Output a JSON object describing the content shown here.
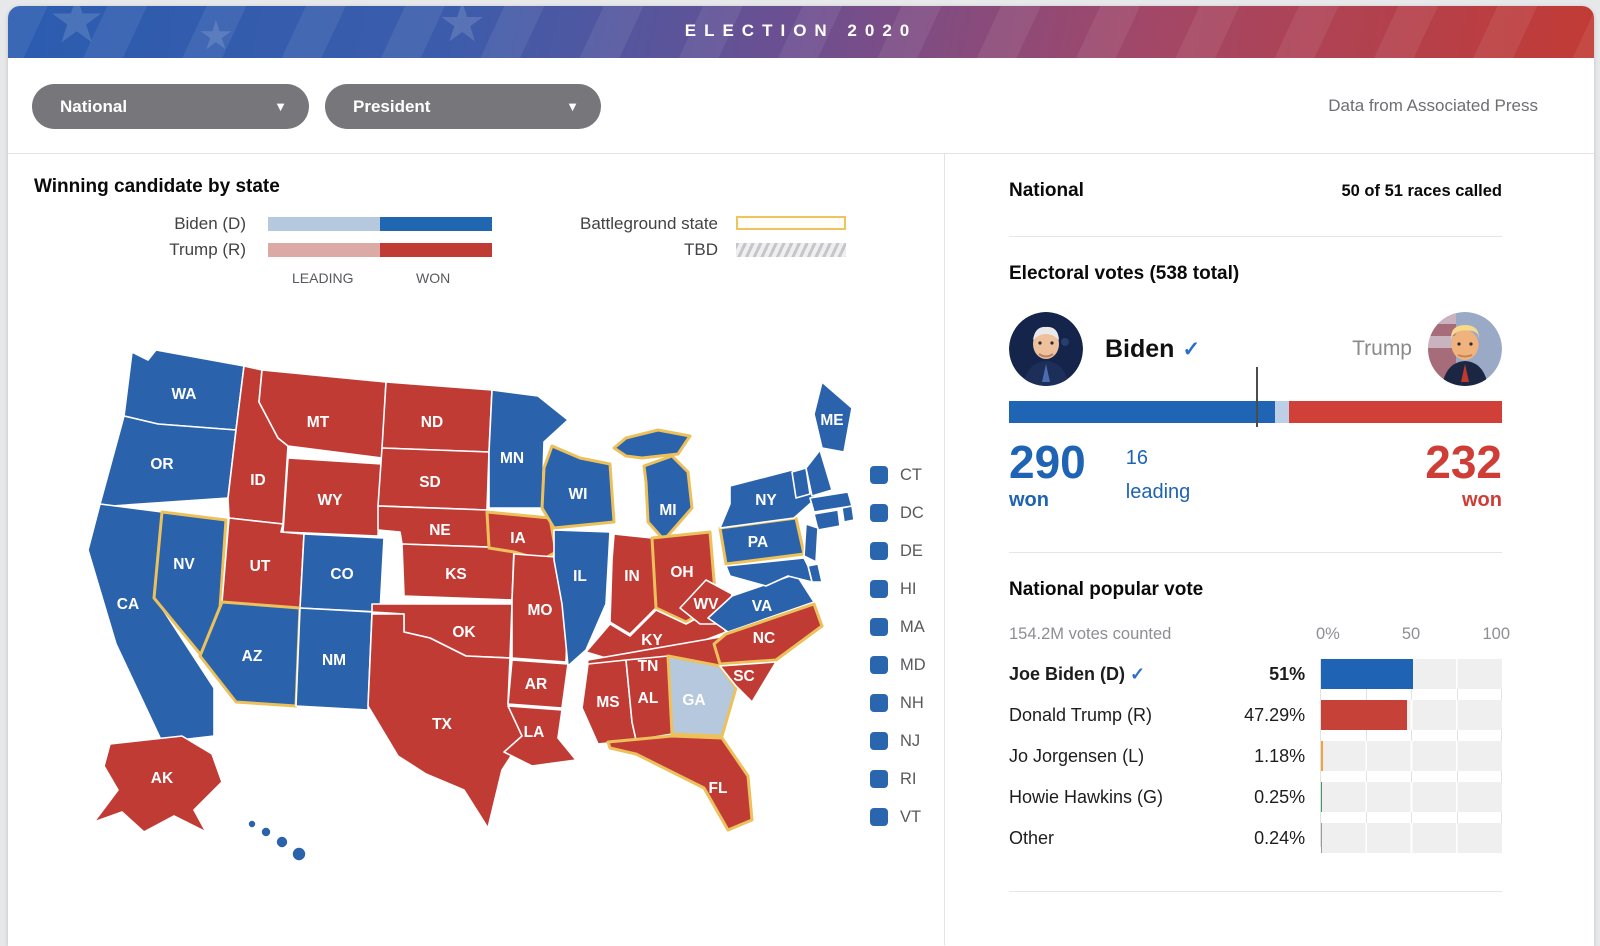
{
  "header": {
    "title": "ELECTION 2020"
  },
  "toolbar": {
    "region_dropdown": "National",
    "race_dropdown": "President",
    "source": "Data from Associated Press"
  },
  "map_panel": {
    "title": "Winning candidate by state",
    "legend": {
      "dem_label": "Biden (D)",
      "rep_label": "Trump (R)",
      "leading_label": "LEADING",
      "won_label": "WON",
      "battleground_label": "Battleground state",
      "tbd_label": "TBD"
    },
    "small_states": [
      "CT",
      "DC",
      "DE",
      "HI",
      "MA",
      "MD",
      "NH",
      "NJ",
      "RI",
      "VT"
    ],
    "states": [
      {
        "abbr": "WA",
        "status": "dem"
      },
      {
        "abbr": "OR",
        "status": "dem"
      },
      {
        "abbr": "CA",
        "status": "dem"
      },
      {
        "abbr": "NV",
        "status": "dem",
        "battleground": true
      },
      {
        "abbr": "ID",
        "status": "rep"
      },
      {
        "abbr": "MT",
        "status": "rep"
      },
      {
        "abbr": "WY",
        "status": "rep"
      },
      {
        "abbr": "UT",
        "status": "rep"
      },
      {
        "abbr": "CO",
        "status": "dem"
      },
      {
        "abbr": "AZ",
        "status": "dem",
        "battleground": true
      },
      {
        "abbr": "NM",
        "status": "dem"
      },
      {
        "abbr": "ND",
        "status": "rep"
      },
      {
        "abbr": "SD",
        "status": "rep"
      },
      {
        "abbr": "NE",
        "status": "rep"
      },
      {
        "abbr": "KS",
        "status": "rep"
      },
      {
        "abbr": "OK",
        "status": "rep"
      },
      {
        "abbr": "TX",
        "status": "rep"
      },
      {
        "abbr": "MN",
        "status": "dem"
      },
      {
        "abbr": "IA",
        "status": "rep",
        "battleground": true
      },
      {
        "abbr": "MO",
        "status": "rep"
      },
      {
        "abbr": "AR",
        "status": "rep"
      },
      {
        "abbr": "LA",
        "status": "rep"
      },
      {
        "abbr": "WI",
        "status": "dem",
        "battleground": true
      },
      {
        "abbr": "IL",
        "status": "dem"
      },
      {
        "abbr": "MI",
        "status": "dem",
        "battleground": true
      },
      {
        "abbr": "IN",
        "status": "rep"
      },
      {
        "abbr": "OH",
        "status": "rep",
        "battleground": true
      },
      {
        "abbr": "KY",
        "status": "rep"
      },
      {
        "abbr": "TN",
        "status": "rep"
      },
      {
        "abbr": "MS",
        "status": "rep"
      },
      {
        "abbr": "AL",
        "status": "rep"
      },
      {
        "abbr": "GA",
        "status": "dem-leading",
        "battleground": true
      },
      {
        "abbr": "WV",
        "status": "rep"
      },
      {
        "abbr": "VA",
        "status": "dem"
      },
      {
        "abbr": "NC",
        "status": "rep",
        "battleground": true
      },
      {
        "abbr": "SC",
        "status": "rep"
      },
      {
        "abbr": "FL",
        "status": "rep",
        "battleground": true
      },
      {
        "abbr": "PA",
        "status": "dem",
        "battleground": true
      },
      {
        "abbr": "NY",
        "status": "dem"
      },
      {
        "abbr": "ME",
        "status": "dem"
      },
      {
        "abbr": "VT",
        "status": "dem",
        "label": false
      },
      {
        "abbr": "NH",
        "status": "dem",
        "label": false
      },
      {
        "abbr": "MA",
        "status": "dem",
        "label": false
      },
      {
        "abbr": "CT",
        "status": "dem",
        "label": false
      },
      {
        "abbr": "RI",
        "status": "dem",
        "label": false
      },
      {
        "abbr": "NJ",
        "status": "dem",
        "label": false
      },
      {
        "abbr": "DE",
        "status": "dem",
        "label": false
      },
      {
        "abbr": "MD",
        "status": "dem",
        "label": false
      },
      {
        "abbr": "AK",
        "status": "rep"
      },
      {
        "abbr": "HI",
        "status": "dem",
        "label": false
      }
    ]
  },
  "results_panel": {
    "region": "National",
    "races_called": "50 of 51 races called",
    "electoral": {
      "title": "Electoral votes (538 total)",
      "dem_name": "Biden",
      "rep_name": "Trump",
      "dem_check": "✓",
      "dem_won": "290",
      "dem_leading": "16",
      "rep_won": "232",
      "won_label": "won",
      "leading_label": "leading",
      "total": 538,
      "majority": 270
    },
    "popular": {
      "title": "National popular vote",
      "counted": "154.2M votes counted",
      "axis": [
        "0%",
        "50",
        "100"
      ],
      "rows": [
        {
          "name": "Joe Biden (D)",
          "pct": "51%",
          "value": 51,
          "winner": true,
          "color": "#1f63b5"
        },
        {
          "name": "Donald Trump (R)",
          "pct": "47.29%",
          "value": 47.29,
          "winner": false,
          "color": "#c64238"
        },
        {
          "name": "Jo Jorgensen (L)",
          "pct": "1.18%",
          "value": 1.18,
          "winner": false,
          "color": "#f2a43b"
        },
        {
          "name": "Howie Hawkins (G)",
          "pct": "0.25%",
          "value": 0.25,
          "winner": false,
          "color": "#3f9b63"
        },
        {
          "name": "Other",
          "pct": "0.24%",
          "value": 0.24,
          "winner": false,
          "color": "#9a9aa0"
        }
      ]
    }
  },
  "colors": {
    "dem": "#2a63ab",
    "rep": "#c13b35",
    "dem_leading": "#b6c8dd",
    "rep_leading": "#dcaaa4",
    "battleground": "#ecc15c",
    "electoral_dem": "#2064b4",
    "electoral_leading": "#bccfe6",
    "electoral_rep": "#d04038"
  },
  "chart_data": [
    {
      "type": "bar",
      "title": "Electoral votes (538 total)",
      "categories": [
        "Biden won",
        "Biden leading",
        "Trump won"
      ],
      "values": [
        290,
        16,
        232
      ],
      "xlabel": "",
      "ylabel": "electoral votes",
      "ylim": [
        0,
        538
      ],
      "annotations": [
        "majority marker at 270"
      ]
    },
    {
      "type": "bar",
      "title": "National popular vote",
      "categories": [
        "Joe Biden (D)",
        "Donald Trump (R)",
        "Jo Jorgensen (L)",
        "Howie Hawkins (G)",
        "Other"
      ],
      "values": [
        51,
        47.29,
        1.18,
        0.25,
        0.24
      ],
      "xlabel": "percent of vote",
      "ylabel": "",
      "ylim": [
        0,
        100
      ],
      "annotations": [
        "154.2M votes counted",
        "axis ticks 0%, 50, 100"
      ]
    }
  ]
}
